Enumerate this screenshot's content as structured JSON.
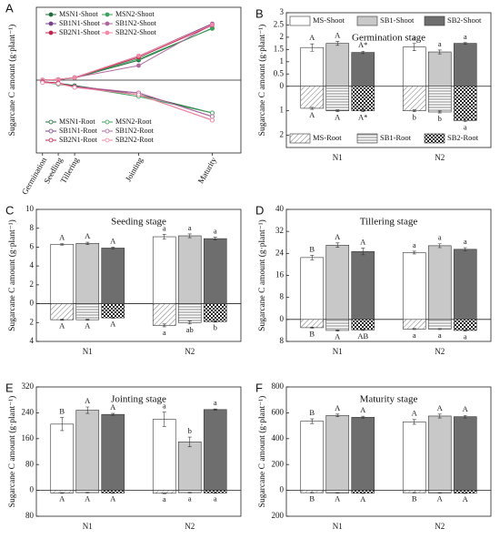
{
  "chart_data": [
    {
      "type": "line",
      "panel": "A",
      "ylabel": "Sugarcane C amount (g·plant⁻¹)",
      "categories": [
        "Germination",
        "Seedling",
        "Tillering",
        "Jointing",
        "Maturity"
      ],
      "ylim": [
        0,
        750
      ],
      "y2lim": [
        -40,
        0
      ],
      "series": [
        {
          "name": "MSN1-Shoot",
          "color": "#1f6b3a",
          "marker": "filled",
          "values": [
            1.58,
            6.3,
            22.5,
            205,
            535
          ]
        },
        {
          "name": "MSN2-Shoot",
          "color": "#3aa35a",
          "marker": "filled",
          "values": [
            1.6,
            7.1,
            24.3,
            220,
            530
          ]
        },
        {
          "name": "SB1N1-Shoot",
          "color": "#7b3f8f",
          "marker": "filled",
          "values": [
            1.75,
            6.4,
            27,
            248,
            580
          ]
        },
        {
          "name": "SB1N2-Shoot",
          "color": "#b0679e",
          "marker": "filled",
          "values": [
            1.4,
            7.2,
            26.8,
            150,
            575
          ]
        },
        {
          "name": "SB2N1-Shoot",
          "color": "#c0264f",
          "marker": "filled",
          "values": [
            1.38,
            5.9,
            24.7,
            235,
            565
          ]
        },
        {
          "name": "SB2N2-Shoot",
          "color": "#f08aa6",
          "marker": "filled",
          "values": [
            1.75,
            6.9,
            25.5,
            250,
            570
          ]
        },
        {
          "name": "MSN1-Root",
          "color": "#1f6b3a",
          "marker": "open",
          "axis": "y2",
          "values": [
            -0.9,
            -1.7,
            -3.0,
            -8,
            -18
          ]
        },
        {
          "name": "MSN2-Root",
          "color": "#3aa35a",
          "marker": "open",
          "axis": "y2",
          "values": [
            -1.0,
            -2.3,
            -3.5,
            -9,
            -18
          ]
        },
        {
          "name": "SB1N1-Root",
          "color": "#7b3f8f",
          "marker": "open",
          "axis": "y2",
          "values": [
            -1.0,
            -1.7,
            -4.0,
            -7,
            -20
          ]
        },
        {
          "name": "SB1N2-Root",
          "color": "#b0679e",
          "marker": "open",
          "axis": "y2",
          "values": [
            -1.05,
            -2.0,
            -3.5,
            -7,
            -20
          ]
        },
        {
          "name": "SB2N1-Root",
          "color": "#c0264f",
          "marker": "open",
          "axis": "y2",
          "values": [
            -1.0,
            -1.5,
            -3.8,
            -8,
            -22
          ]
        },
        {
          "name": "SB2N2-Root",
          "color": "#f08aa6",
          "marker": "open",
          "axis": "y2",
          "values": [
            -1.4,
            -1.9,
            -4.0,
            -8,
            -22
          ]
        }
      ]
    },
    {
      "type": "bar",
      "panel": "B",
      "title": "Germination stage",
      "ylabel": "Sugarcane C amount (g·plant⁻¹)",
      "categories": [
        "N1",
        "N2"
      ],
      "ylim": [
        -2.5,
        3
      ],
      "legend": "top",
      "yticks": [
        3,
        2.5,
        2,
        1.5,
        1,
        0.5,
        0,
        {
          "value": -1,
          "label": "1"
        },
        {
          "value": -2,
          "label": "2"
        }
      ],
      "series": [
        {
          "name": "MS-Shoot",
          "color": "#ffffff",
          "values": [
            1.58,
            1.6
          ],
          "errors": [
            0.15,
            0.15
          ],
          "labels": [
            "A",
            "a"
          ]
        },
        {
          "name": "SB1-Shoot",
          "color": "#c8c8c8",
          "values": [
            1.75,
            1.4
          ],
          "errors": [
            0.08,
            0.08
          ],
          "labels": [
            "A",
            "a"
          ]
        },
        {
          "name": "SB2-Shoot",
          "color": "#6e6e6e",
          "values": [
            1.38,
            1.75
          ],
          "errors": [
            0.05,
            0.03
          ],
          "labels": [
            "A*",
            "a"
          ]
        },
        {
          "name": "MS-Root",
          "color": "#ffffff",
          "pattern": "diagonal",
          "values": [
            -0.9,
            -1.0
          ],
          "errors": [
            0.04,
            0.04
          ],
          "labels": [
            "A",
            "b"
          ]
        },
        {
          "name": "SB1-Root",
          "color": "#c8c8c8",
          "pattern": "horizontal",
          "values": [
            -1.0,
            -1.05
          ],
          "errors": [
            0.04,
            0.04
          ],
          "labels": [
            "A",
            "b"
          ]
        },
        {
          "name": "SB2-Root",
          "color": "#6e6e6e",
          "pattern": "checker",
          "values": [
            -1.0,
            -1.4
          ],
          "errors": [
            0.04,
            0.05
          ],
          "labels": [
            "A*",
            "a"
          ]
        }
      ]
    },
    {
      "type": "bar",
      "panel": "C",
      "title": "Seeding stage",
      "ylabel": "Sugarcane C amount (g·plant⁻¹)",
      "categories": [
        "N1",
        "N2"
      ],
      "ylim": [
        -4,
        10
      ],
      "yticks": [
        10,
        8,
        6,
        4,
        2,
        0,
        {
          "value": -2,
          "label": "2"
        },
        {
          "value": -4,
          "label": "4"
        }
      ],
      "series": [
        {
          "color": "#ffffff",
          "values": [
            6.3,
            7.1
          ],
          "errors": [
            0.08,
            0.25
          ],
          "labels": [
            "A",
            "a"
          ]
        },
        {
          "color": "#c8c8c8",
          "values": [
            6.4,
            7.2
          ],
          "errors": [
            0.12,
            0.2
          ],
          "labels": [
            "A",
            "a"
          ]
        },
        {
          "color": "#6e6e6e",
          "values": [
            5.9,
            6.9
          ],
          "errors": [
            0.1,
            0.15
          ],
          "labels": [
            "A",
            "a"
          ]
        },
        {
          "color": "#ffffff",
          "pattern": "diagonal",
          "values": [
            -1.7,
            -2.3
          ],
          "errors": [
            0.05,
            0.15
          ],
          "labels": [
            "A",
            "a"
          ]
        },
        {
          "color": "#c8c8c8",
          "pattern": "horizontal",
          "values": [
            -1.7,
            -2.0
          ],
          "errors": [
            0.05,
            0.15
          ],
          "labels": [
            "A",
            "ab"
          ]
        },
        {
          "color": "#6e6e6e",
          "pattern": "checker",
          "values": [
            -1.5,
            -1.9
          ],
          "errors": [
            0.05,
            0.05
          ],
          "labels": [
            "A",
            "b"
          ]
        }
      ]
    },
    {
      "type": "bar",
      "panel": "D",
      "title": "Tillering stage",
      "ylabel": "Sugarcane C amount (g·plant⁻¹)",
      "categories": [
        "N1",
        "N2"
      ],
      "ylim": [
        -8,
        40
      ],
      "yticks": [
        40,
        32,
        24,
        16,
        8,
        0,
        {
          "value": -8,
          "label": "8"
        }
      ],
      "series": [
        {
          "color": "#ffffff",
          "values": [
            22.5,
            24.3
          ],
          "errors": [
            0.8,
            0.5
          ],
          "labels": [
            "B",
            "a"
          ]
        },
        {
          "color": "#c8c8c8",
          "values": [
            27,
            26.8
          ],
          "errors": [
            0.8,
            0.7
          ],
          "labels": [
            "A",
            "a"
          ]
        },
        {
          "color": "#6e6e6e",
          "values": [
            24.7,
            25.5
          ],
          "errors": [
            1.2,
            0.6
          ],
          "labels": [
            "A",
            "a"
          ]
        },
        {
          "color": "#ffffff",
          "pattern": "diagonal",
          "values": [
            -3.0,
            -3.5
          ],
          "errors": [
            0.2,
            0.2
          ],
          "labels": [
            "B",
            "a"
          ]
        },
        {
          "color": "#c8c8c8",
          "pattern": "horizontal",
          "values": [
            -4.0,
            -3.5
          ],
          "errors": [
            0.2,
            0.2
          ],
          "labels": [
            "A",
            "a"
          ]
        },
        {
          "color": "#6e6e6e",
          "pattern": "checker",
          "values": [
            -3.8,
            -4.0
          ],
          "errors": [
            0.2,
            0.2
          ],
          "labels": [
            "AB",
            "a"
          ]
        }
      ]
    },
    {
      "type": "bar",
      "panel": "E",
      "title": "Jointing stage",
      "ylabel": "Sugarcane C amount (g·plant⁻¹)",
      "categories": [
        "N1",
        "N2"
      ],
      "ylim": [
        -80,
        320
      ],
      "yticks": [
        320,
        240,
        160,
        80,
        0,
        {
          "value": -80,
          "label": "80"
        }
      ],
      "series": [
        {
          "color": "#ffffff",
          "values": [
            205,
            220
          ],
          "errors": [
            20,
            22
          ],
          "labels": [
            "B",
            "a"
          ]
        },
        {
          "color": "#c8c8c8",
          "values": [
            248,
            150
          ],
          "errors": [
            10,
            15
          ],
          "labels": [
            "A",
            "b"
          ]
        },
        {
          "color": "#6e6e6e",
          "values": [
            235,
            250
          ],
          "errors": [
            3,
            2
          ],
          "labels": [
            "A",
            "a"
          ]
        },
        {
          "color": "#ffffff",
          "pattern": "diagonal",
          "values": [
            -8,
            -9
          ],
          "errors": [
            1,
            1
          ],
          "labels": [
            "A",
            "a"
          ]
        },
        {
          "color": "#c8c8c8",
          "pattern": "horizontal",
          "values": [
            -7,
            -7
          ],
          "errors": [
            1,
            1
          ],
          "labels": [
            "A",
            "a"
          ]
        },
        {
          "color": "#6e6e6e",
          "pattern": "checker",
          "values": [
            -8,
            -8
          ],
          "errors": [
            1,
            1
          ],
          "labels": [
            "A",
            "a"
          ]
        }
      ]
    },
    {
      "type": "bar",
      "panel": "F",
      "title": "Maturity stage",
      "ylabel": "Sugarcane C amount (g·plant⁻¹)",
      "categories": [
        "N1",
        "N2"
      ],
      "ylim": [
        -200,
        800
      ],
      "yticks": [
        800,
        600,
        400,
        200,
        0,
        {
          "value": -200,
          "label": "200"
        }
      ],
      "series": [
        {
          "color": "#ffffff",
          "values": [
            535,
            530
          ],
          "errors": [
            18,
            18
          ],
          "labels": [
            "B",
            "A"
          ]
        },
        {
          "color": "#c8c8c8",
          "values": [
            580,
            575
          ],
          "errors": [
            10,
            15
          ],
          "labels": [
            "A",
            "A"
          ]
        },
        {
          "color": "#6e6e6e",
          "values": [
            565,
            570
          ],
          "errors": [
            8,
            10
          ],
          "labels": [
            "A",
            "A"
          ]
        },
        {
          "color": "#ffffff",
          "pattern": "diagonal",
          "values": [
            -18,
            -18
          ],
          "errors": [
            2,
            2
          ],
          "labels": [
            "B",
            "B"
          ]
        },
        {
          "color": "#c8c8c8",
          "pattern": "horizontal",
          "values": [
            -20,
            -20
          ],
          "errors": [
            2,
            2
          ],
          "labels": [
            "A",
            "A"
          ]
        },
        {
          "color": "#6e6e6e",
          "pattern": "checker",
          "values": [
            -22,
            -22
          ],
          "errors": [
            2,
            2
          ],
          "labels": [
            "A",
            "A"
          ]
        }
      ]
    }
  ]
}
